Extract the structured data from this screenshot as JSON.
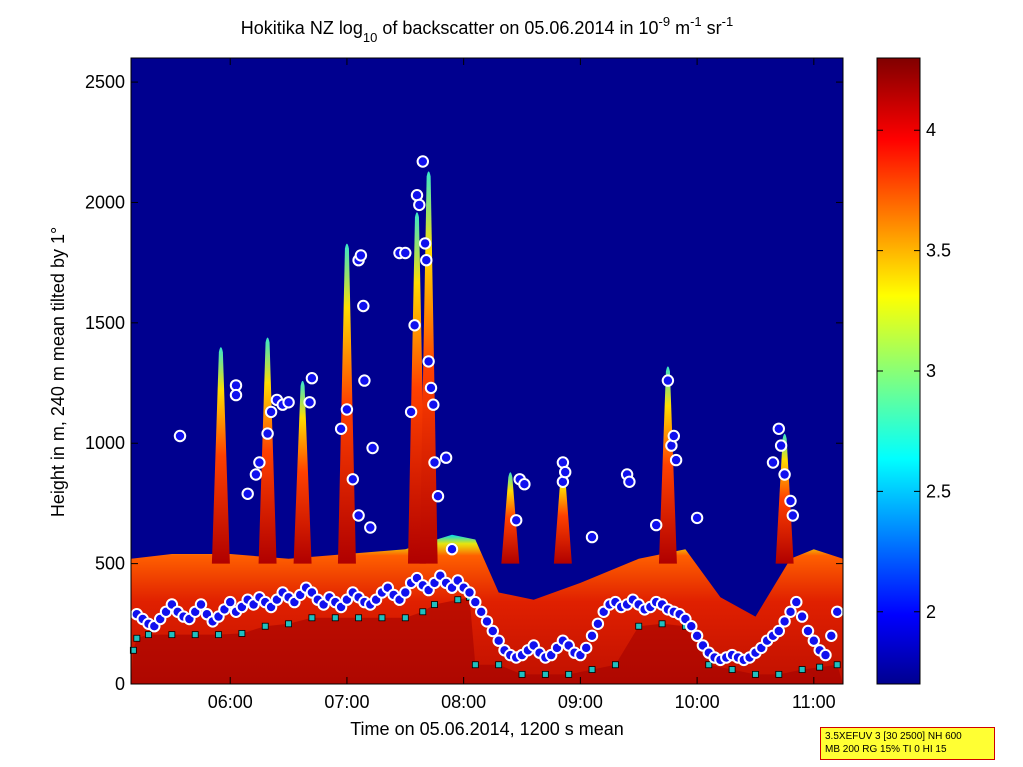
{
  "chart_data": {
    "type": "heatmap",
    "title_parts": {
      "pre": "Hokitika NZ log",
      "sub": "10",
      "mid": " of backscatter on 05.06.2014 in 10",
      "sup1": "-9",
      "mid2": " m",
      "sup2": "-1",
      "mid3": " sr",
      "sup3": "-1"
    },
    "xlabel": "Time on 05.06.2014, 1200 s mean",
    "ylabel": "Height in m, 240 m mean tilted by 1°",
    "x_range_hours": [
      5.15,
      11.25
    ],
    "ylim": [
      0,
      2600
    ],
    "x_ticks": [
      {
        "value": 6,
        "label": "06:00"
      },
      {
        "value": 7,
        "label": "07:00"
      },
      {
        "value": 8,
        "label": "08:00"
      },
      {
        "value": 9,
        "label": "09:00"
      },
      {
        "value": 10,
        "label": "10:00"
      },
      {
        "value": 11,
        "label": "11:00"
      }
    ],
    "y_ticks": [
      {
        "value": 0,
        "label": "0"
      },
      {
        "value": 500,
        "label": "500"
      },
      {
        "value": 1000,
        "label": "1000"
      },
      {
        "value": 1500,
        "label": "1500"
      },
      {
        "value": 2000,
        "label": "2000"
      },
      {
        "value": 2500,
        "label": "2500"
      }
    ],
    "colorbar": {
      "range": [
        1.7,
        4.3
      ],
      "colormap": "jet",
      "ticks": [
        {
          "value": 2,
          "label": "2"
        },
        {
          "value": 2.5,
          "label": "2.5"
        },
        {
          "value": 3,
          "label": "3"
        },
        {
          "value": 3.5,
          "label": "3.5"
        },
        {
          "value": 4,
          "label": "4"
        }
      ]
    },
    "background_value": 1.7,
    "aerosol_layer_top_m": [
      [
        5.15,
        520
      ],
      [
        5.5,
        540
      ],
      [
        6.0,
        540
      ],
      [
        6.5,
        520
      ],
      [
        7.0,
        540
      ],
      [
        7.5,
        560
      ],
      [
        7.9,
        620
      ],
      [
        8.1,
        600
      ],
      [
        8.3,
        380
      ],
      [
        8.6,
        350
      ],
      [
        9.0,
        420
      ],
      [
        9.5,
        520
      ],
      [
        9.9,
        560
      ],
      [
        10.2,
        360
      ],
      [
        10.5,
        280
      ],
      [
        10.8,
        520
      ],
      [
        11.0,
        560
      ],
      [
        11.25,
        520
      ]
    ],
    "plumes": [
      {
        "time": 5.92,
        "top_m": 1420
      },
      {
        "time": 6.32,
        "top_m": 1460
      },
      {
        "time": 6.62,
        "top_m": 1280
      },
      {
        "time": 7.0,
        "top_m": 1850
      },
      {
        "time": 7.6,
        "top_m": 1980
      },
      {
        "time": 7.7,
        "top_m": 2150
      },
      {
        "time": 8.4,
        "top_m": 900
      },
      {
        "time": 8.85,
        "top_m": 920
      },
      {
        "time": 9.75,
        "top_m": 1340
      },
      {
        "time": 10.75,
        "top_m": 1060
      }
    ],
    "mixing_layer_markers": {
      "name": "cloud/aerosol layer detections",
      "color": "#1010ee",
      "outline": "#ffffff",
      "points": [
        [
          5.2,
          290
        ],
        [
          5.25,
          270
        ],
        [
          5.3,
          250
        ],
        [
          5.35,
          240
        ],
        [
          5.4,
          270
        ],
        [
          5.45,
          300
        ],
        [
          5.5,
          330
        ],
        [
          5.55,
          300
        ],
        [
          5.6,
          280
        ],
        [
          5.65,
          270
        ],
        [
          5.7,
          300
        ],
        [
          5.75,
          330
        ],
        [
          5.8,
          290
        ],
        [
          5.85,
          260
        ],
        [
          5.9,
          280
        ],
        [
          5.95,
          310
        ],
        [
          6.0,
          340
        ],
        [
          6.05,
          300
        ],
        [
          6.1,
          320
        ],
        [
          6.15,
          350
        ],
        [
          6.2,
          330
        ],
        [
          6.25,
          360
        ],
        [
          6.3,
          340
        ],
        [
          6.35,
          320
        ],
        [
          6.4,
          350
        ],
        [
          6.45,
          380
        ],
        [
          6.5,
          360
        ],
        [
          6.55,
          340
        ],
        [
          6.6,
          370
        ],
        [
          6.65,
          400
        ],
        [
          6.7,
          380
        ],
        [
          6.75,
          350
        ],
        [
          6.8,
          330
        ],
        [
          6.85,
          360
        ],
        [
          6.9,
          340
        ],
        [
          6.95,
          320
        ],
        [
          7.0,
          350
        ],
        [
          7.05,
          380
        ],
        [
          7.1,
          360
        ],
        [
          7.15,
          340
        ],
        [
          7.2,
          330
        ],
        [
          7.25,
          350
        ],
        [
          7.3,
          380
        ],
        [
          7.35,
          400
        ],
        [
          7.4,
          370
        ],
        [
          7.45,
          350
        ],
        [
          7.5,
          380
        ],
        [
          7.55,
          420
        ],
        [
          7.6,
          440
        ],
        [
          7.65,
          410
        ],
        [
          7.7,
          390
        ],
        [
          7.75,
          420
        ],
        [
          7.8,
          450
        ],
        [
          7.85,
          420
        ],
        [
          7.9,
          400
        ],
        [
          7.95,
          430
        ],
        [
          8.0,
          400
        ],
        [
          8.05,
          380
        ],
        [
          8.1,
          340
        ],
        [
          8.15,
          300
        ],
        [
          8.2,
          260
        ],
        [
          8.25,
          220
        ],
        [
          8.3,
          180
        ],
        [
          8.35,
          140
        ],
        [
          8.4,
          120
        ],
        [
          8.45,
          110
        ],
        [
          8.5,
          120
        ],
        [
          8.55,
          140
        ],
        [
          8.6,
          160
        ],
        [
          8.65,
          130
        ],
        [
          8.7,
          110
        ],
        [
          8.75,
          120
        ],
        [
          8.8,
          150
        ],
        [
          8.85,
          180
        ],
        [
          8.9,
          160
        ],
        [
          8.95,
          130
        ],
        [
          9.0,
          120
        ],
        [
          9.05,
          150
        ],
        [
          9.1,
          200
        ],
        [
          9.15,
          250
        ],
        [
          9.2,
          300
        ],
        [
          9.25,
          330
        ],
        [
          9.3,
          340
        ],
        [
          9.35,
          320
        ],
        [
          9.4,
          330
        ],
        [
          9.45,
          350
        ],
        [
          9.5,
          330
        ],
        [
          9.55,
          310
        ],
        [
          9.6,
          320
        ],
        [
          9.65,
          340
        ],
        [
          9.7,
          330
        ],
        [
          9.75,
          310
        ],
        [
          9.8,
          300
        ],
        [
          9.85,
          290
        ],
        [
          9.9,
          270
        ],
        [
          9.95,
          240
        ],
        [
          10.0,
          200
        ],
        [
          10.05,
          160
        ],
        [
          10.1,
          130
        ],
        [
          10.15,
          110
        ],
        [
          10.2,
          100
        ],
        [
          10.25,
          110
        ],
        [
          10.3,
          120
        ],
        [
          10.35,
          110
        ],
        [
          10.4,
          100
        ],
        [
          10.45,
          110
        ],
        [
          10.5,
          130
        ],
        [
          10.55,
          150
        ],
        [
          10.6,
          180
        ],
        [
          10.65,
          200
        ],
        [
          10.7,
          220
        ],
        [
          10.75,
          260
        ],
        [
          10.8,
          300
        ],
        [
          10.85,
          340
        ],
        [
          10.9,
          280
        ],
        [
          10.95,
          220
        ],
        [
          11.0,
          180
        ],
        [
          11.05,
          140
        ],
        [
          11.1,
          120
        ],
        [
          11.15,
          200
        ],
        [
          11.2,
          300
        ]
      ]
    },
    "plume_markers": {
      "color": "#1010ee",
      "outline": "#ffffff",
      "points": [
        [
          5.57,
          1030
        ],
        [
          6.05,
          1240
        ],
        [
          6.05,
          1200
        ],
        [
          6.15,
          790
        ],
        [
          6.22,
          870
        ],
        [
          6.25,
          920
        ],
        [
          6.32,
          1040
        ],
        [
          6.35,
          1130
        ],
        [
          6.4,
          1180
        ],
        [
          6.45,
          1160
        ],
        [
          6.5,
          1170
        ],
        [
          6.7,
          1270
        ],
        [
          6.68,
          1170
        ],
        [
          6.95,
          1060
        ],
        [
          7.0,
          1140
        ],
        [
          7.05,
          850
        ],
        [
          7.1,
          1760
        ],
        [
          7.12,
          1780
        ],
        [
          7.14,
          1570
        ],
        [
          7.15,
          1260
        ],
        [
          7.22,
          980
        ],
        [
          7.1,
          700
        ],
        [
          7.2,
          650
        ],
        [
          7.45,
          1790
        ],
        [
          7.5,
          1790
        ],
        [
          7.55,
          1130
        ],
        [
          7.58,
          1490
        ],
        [
          7.6,
          2030
        ],
        [
          7.62,
          1990
        ],
        [
          7.65,
          2170
        ],
        [
          7.67,
          1830
        ],
        [
          7.68,
          1760
        ],
        [
          7.7,
          1340
        ],
        [
          7.72,
          1230
        ],
        [
          7.74,
          1160
        ],
        [
          7.75,
          920
        ],
        [
          7.78,
          780
        ],
        [
          7.9,
          560
        ],
        [
          7.85,
          940
        ],
        [
          8.45,
          680
        ],
        [
          8.48,
          850
        ],
        [
          8.52,
          830
        ],
        [
          8.85,
          840
        ],
        [
          8.85,
          920
        ],
        [
          8.87,
          880
        ],
        [
          9.1,
          610
        ],
        [
          9.4,
          870
        ],
        [
          9.42,
          840
        ],
        [
          9.75,
          1260
        ],
        [
          9.78,
          990
        ],
        [
          9.8,
          1030
        ],
        [
          9.82,
          930
        ],
        [
          9.65,
          660
        ],
        [
          10.0,
          690
        ],
        [
          10.7,
          1060
        ],
        [
          10.72,
          990
        ],
        [
          10.75,
          870
        ],
        [
          10.65,
          920
        ],
        [
          10.8,
          760
        ],
        [
          10.82,
          700
        ]
      ]
    },
    "ground_squares": {
      "color": "#20c0c0",
      "points": [
        [
          5.17,
          140
        ],
        [
          5.2,
          190
        ],
        [
          5.3,
          205
        ],
        [
          5.5,
          205
        ],
        [
          5.7,
          205
        ],
        [
          5.9,
          205
        ],
        [
          6.1,
          210
        ],
        [
          6.3,
          240
        ],
        [
          6.5,
          250
        ],
        [
          6.7,
          275
        ],
        [
          6.9,
          275
        ],
        [
          7.1,
          275
        ],
        [
          7.3,
          275
        ],
        [
          7.5,
          275
        ],
        [
          7.65,
          300
        ],
        [
          7.75,
          330
        ],
        [
          7.95,
          350
        ],
        [
          8.05,
          360
        ],
        [
          8.1,
          80
        ],
        [
          8.3,
          80
        ],
        [
          8.5,
          40
        ],
        [
          8.7,
          40
        ],
        [
          8.9,
          40
        ],
        [
          9.1,
          60
        ],
        [
          9.3,
          80
        ],
        [
          9.5,
          240
        ],
        [
          9.7,
          250
        ],
        [
          9.9,
          240
        ],
        [
          10.1,
          80
        ],
        [
          10.3,
          60
        ],
        [
          10.5,
          40
        ],
        [
          10.7,
          40
        ],
        [
          10.9,
          60
        ],
        [
          11.05,
          70
        ],
        [
          11.2,
          80
        ]
      ]
    }
  },
  "param_box": {
    "line1": "3.5XEFUV 3 [30 2500] NH 600",
    "line2": "MB 200 RG 15% TI 0 HI 15"
  }
}
